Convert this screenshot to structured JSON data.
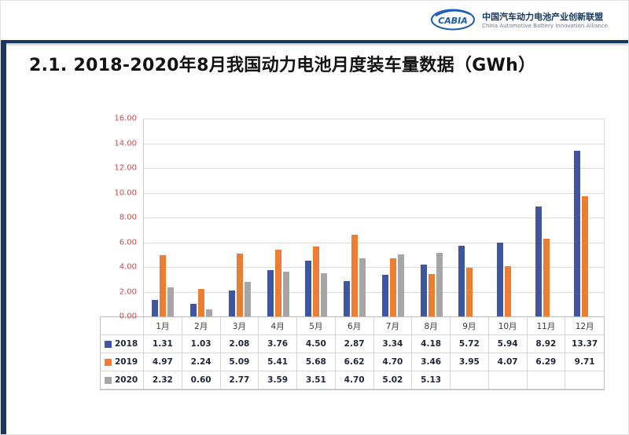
{
  "header": {
    "logo_text": "CABIA",
    "org_cn": "中国汽车动力电池产业创新联盟",
    "org_en": "China Automotive Battery Innovation Alliance"
  },
  "title": "2.1. 2018-2020年8月我国动力电池月度装车量数据（GWh）",
  "colors": {
    "divider": "#17375e",
    "axis_label": "#c0504d",
    "series_2018": "#3f559d",
    "series_2019": "#ed7d31",
    "series_2020": "#a6a6a6"
  },
  "chart_data": {
    "type": "bar",
    "title": "2018-2020年8月我国动力电池月度装车量数据（GWh）",
    "categories": [
      "1月",
      "2月",
      "3月",
      "4月",
      "5月",
      "6月",
      "7月",
      "8月",
      "9月",
      "10月",
      "11月",
      "12月"
    ],
    "series": [
      {
        "name": "2018",
        "color": "#3f559d",
        "values": [
          1.31,
          1.03,
          2.08,
          3.76,
          4.5,
          2.87,
          3.34,
          4.18,
          5.72,
          5.94,
          8.92,
          13.37
        ]
      },
      {
        "name": "2019",
        "color": "#ed7d31",
        "values": [
          4.97,
          2.24,
          5.09,
          5.41,
          5.68,
          6.62,
          4.7,
          3.46,
          3.95,
          4.07,
          6.29,
          9.71
        ]
      },
      {
        "name": "2020",
        "color": "#a6a6a6",
        "values": [
          2.32,
          0.6,
          2.77,
          3.59,
          3.51,
          4.7,
          5.02,
          5.13
        ]
      }
    ],
    "xlabel": "",
    "ylabel": "",
    "ylim": [
      0,
      16
    ],
    "ytick_step": 2,
    "ytick_labels": [
      "16.00",
      "14.00",
      "12.00",
      "10.00",
      "8.00",
      "6.00",
      "4.00",
      "2.00",
      "0.00"
    ],
    "grid": true,
    "legend_position": "table-left",
    "data_table_shown": true
  }
}
